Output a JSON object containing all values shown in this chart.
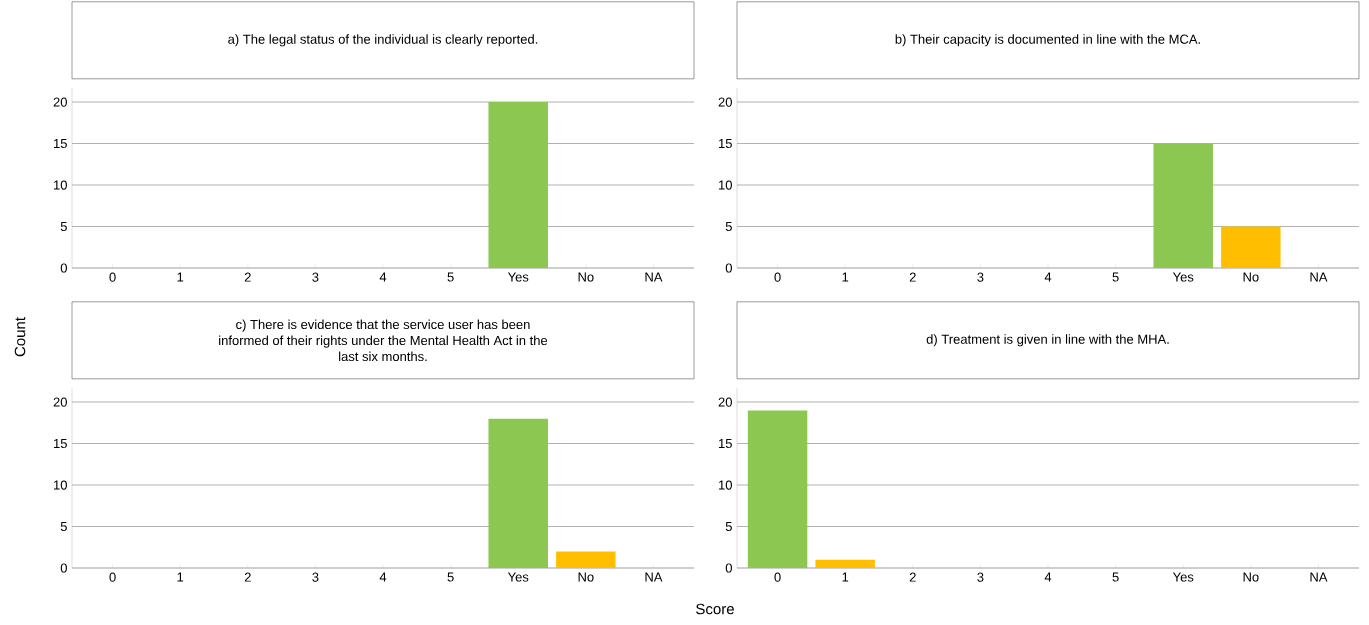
{
  "chart_data": [
    {
      "type": "bar",
      "title": "a) The legal status of the individual is clearly reported.",
      "ylabel": "Count",
      "categories": [
        "0",
        "1",
        "2",
        "3",
        "4",
        "5",
        "Yes",
        "No",
        "NA"
      ],
      "values": [
        0,
        0,
        0,
        0,
        0,
        0,
        20,
        0,
        0
      ],
      "colors": [
        "#8bc751",
        "#ffbf00",
        "#8bc751",
        "#8bc751",
        "#8bc751",
        "#8bc751",
        "#8bc751",
        "#ffbf00",
        "#8bc751"
      ],
      "ylim": [
        0,
        21.7
      ],
      "yticks": [
        0,
        5,
        10,
        15,
        20
      ],
      "grid": "y"
    },
    {
      "type": "bar",
      "title": "b) Their capacity is documented in line with the MCA.",
      "categories": [
        "0",
        "1",
        "2",
        "3",
        "4",
        "5",
        "Yes",
        "No",
        "NA"
      ],
      "values": [
        0,
        0,
        0,
        0,
        0,
        0,
        15,
        5,
        0
      ],
      "colors": [
        "#8bc751",
        "#ffbf00",
        "#8bc751",
        "#8bc751",
        "#8bc751",
        "#8bc751",
        "#8bc751",
        "#ffbf00",
        "#8bc751"
      ],
      "ylim": [
        0,
        21.7
      ],
      "yticks": [
        0,
        5,
        10,
        15,
        20
      ],
      "grid": "y"
    },
    {
      "type": "bar",
      "title": "c) There is evidence that the service user has been informed of their rights under the Mental Health Act in the last six months.",
      "xlabel": "Score",
      "categories": [
        "0",
        "1",
        "2",
        "3",
        "4",
        "5",
        "Yes",
        "No",
        "NA"
      ],
      "values": [
        0,
        0,
        0,
        0,
        0,
        0,
        18,
        2,
        0
      ],
      "colors": [
        "#8bc751",
        "#ffbf00",
        "#8bc751",
        "#8bc751",
        "#8bc751",
        "#8bc751",
        "#8bc751",
        "#ffbf00",
        "#8bc751"
      ],
      "ylim": [
        0,
        21.7
      ],
      "yticks": [
        0,
        5,
        10,
        15,
        20
      ],
      "grid": "y"
    },
    {
      "type": "bar",
      "title": "d) Treatment is given in line with the MHA.",
      "categories": [
        "0",
        "1",
        "2",
        "3",
        "4",
        "5",
        "Yes",
        "No",
        "NA"
      ],
      "values": [
        19,
        1,
        0,
        0,
        0,
        0,
        0,
        0,
        0
      ],
      "colors": [
        "#8bc751",
        "#ffbf00",
        "#8bc751",
        "#8bc751",
        "#8bc751",
        "#8bc751",
        "#8bc751",
        "#ffbf00",
        "#8bc751"
      ],
      "ylim": [
        0,
        21.7
      ],
      "yticks": [
        0,
        5,
        10,
        15,
        20
      ],
      "grid": "y"
    }
  ]
}
